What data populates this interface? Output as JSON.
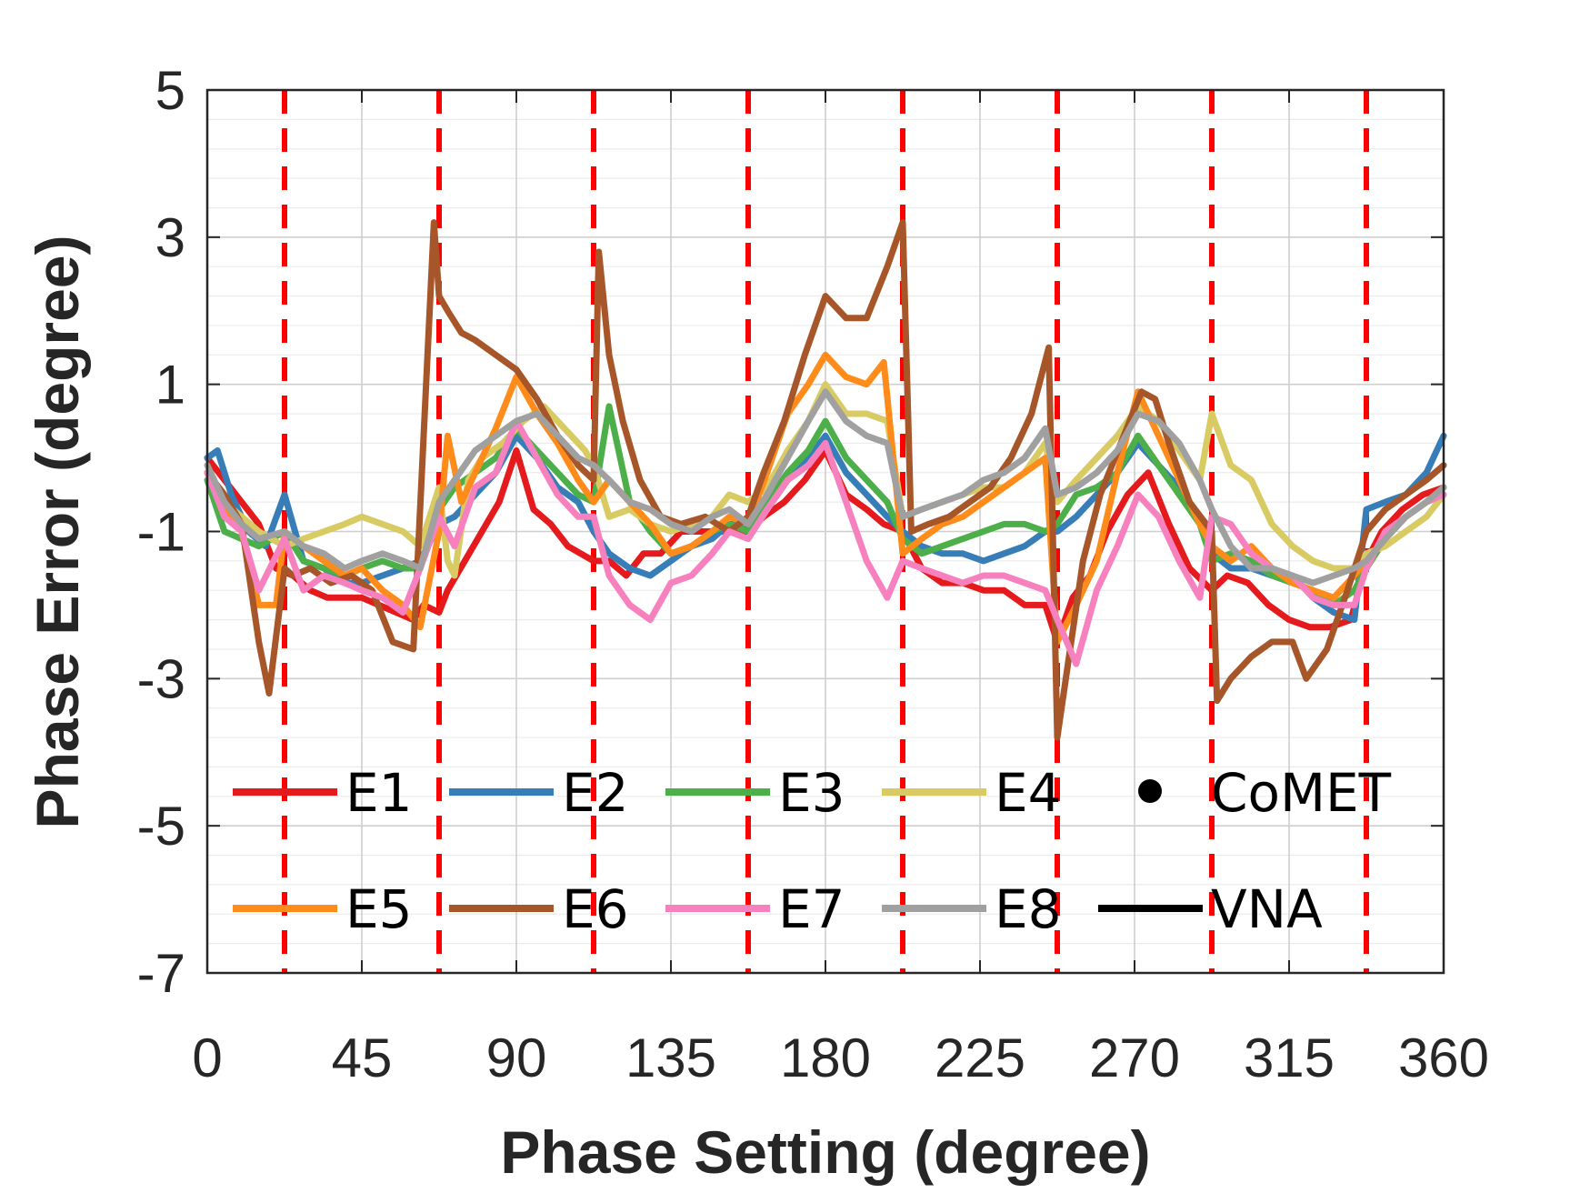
{
  "chart_data": {
    "type": "line",
    "title": "",
    "xlabel": "Phase Setting (degree)",
    "ylabel": "Phase Error (degree)",
    "xlim": [
      0,
      360
    ],
    "ylim": [
      -7,
      5
    ],
    "xticks": [
      0,
      45,
      90,
      135,
      180,
      225,
      270,
      315,
      360
    ],
    "yticks": [
      5,
      3,
      1,
      -1,
      -3,
      -5,
      -7
    ],
    "xtick_labels": [
      "0",
      "45",
      "90",
      "135",
      "180",
      "225",
      "270",
      "315",
      "360"
    ],
    "ytick_labels": [
      "5",
      "3",
      "1",
      "-1",
      "-3",
      "-5",
      "-7"
    ],
    "grid": true,
    "minor_grid_y": true,
    "vertical_markers": {
      "color": "#ff0000",
      "style": "dashed",
      "x": [
        22.5,
        67.5,
        112.5,
        157.5,
        202.5,
        247.5,
        292.5,
        337.5
      ]
    },
    "legend": {
      "placement": "bottom",
      "entries": [
        {
          "key": "E1",
          "label": "E1"
        },
        {
          "key": "E2",
          "label": "E2"
        },
        {
          "key": "E3",
          "label": "E3"
        },
        {
          "key": "E4",
          "label": "E4"
        },
        {
          "key": "CoMET",
          "label": "CoMET",
          "marker": "dot"
        },
        {
          "key": "E5",
          "label": "E5"
        },
        {
          "key": "E6",
          "label": "E6"
        },
        {
          "key": "E7",
          "label": "E7"
        },
        {
          "key": "E8",
          "label": "E8"
        },
        {
          "key": "VNA",
          "label": "VNA",
          "marker": "line"
        }
      ]
    },
    "series": [
      {
        "name": "E1",
        "color": "#e41a1c",
        "x": [
          0,
          5,
          10,
          15,
          20,
          25,
          30,
          35,
          40,
          45,
          50,
          55,
          60,
          63,
          67.5,
          70,
          75,
          80,
          85,
          90,
          95,
          100,
          105,
          112.5,
          117,
          122,
          127,
          132,
          138,
          145,
          150,
          157.5,
          162,
          168,
          174,
          180,
          186,
          192,
          197,
          202.5,
          208,
          214,
          220,
          226,
          232,
          238,
          244,
          247.5,
          252,
          257,
          262,
          268,
          274,
          280,
          286,
          292.5,
          297,
          303,
          309,
          315,
          321,
          327,
          333,
          337.5,
          342,
          348,
          354,
          360
        ],
        "y": [
          0,
          -0.3,
          -0.6,
          -0.9,
          -1.5,
          -1.6,
          -1.8,
          -1.9,
          -1.9,
          -1.9,
          -2.0,
          -2.1,
          -2.2,
          -2.0,
          -2.1,
          -1.8,
          -1.4,
          -1.0,
          -0.6,
          0.1,
          -0.7,
          -0.9,
          -1.2,
          -1.4,
          -1.4,
          -1.6,
          -1.3,
          -1.3,
          -1.0,
          -1.0,
          -1.0,
          -1.0,
          -0.8,
          -0.6,
          -0.3,
          0.1,
          -0.5,
          -0.7,
          -0.9,
          -1.0,
          -1.5,
          -1.7,
          -1.7,
          -1.8,
          -1.8,
          -2.0,
          -2.0,
          -2.5,
          -1.9,
          -1.6,
          -1.0,
          -0.5,
          -0.2,
          -0.9,
          -1.5,
          -1.8,
          -1.6,
          -1.7,
          -2.0,
          -2.2,
          -2.3,
          -2.3,
          -2.2,
          -1.4,
          -1.0,
          -0.7,
          -0.5,
          -0.4
        ]
      },
      {
        "name": "E2",
        "color": "#377eb8",
        "x": [
          0,
          3,
          7,
          12,
          17,
          22.5,
          28,
          34,
          40,
          45,
          51,
          57,
          62,
          67.5,
          72,
          78,
          84,
          90,
          96,
          102,
          108,
          112.5,
          117,
          123,
          129,
          135,
          141,
          147,
          152,
          157.5,
          163,
          169,
          175,
          180,
          186,
          192,
          198,
          202.5,
          208,
          214,
          220,
          226,
          232,
          238,
          244,
          247.5,
          253,
          259,
          265,
          271,
          277,
          283,
          289,
          292.5,
          298,
          304,
          310,
          316,
          322,
          328,
          334,
          337.5,
          343,
          349,
          355,
          360
        ],
        "y": [
          0,
          0.1,
          -0.5,
          -1.0,
          -1.2,
          -0.5,
          -1.4,
          -1.5,
          -1.7,
          -1.7,
          -1.6,
          -1.5,
          -1.4,
          -0.9,
          -0.8,
          -0.5,
          -0.2,
          0.3,
          0.0,
          -0.4,
          -0.6,
          -1.0,
          -1.3,
          -1.5,
          -1.6,
          -1.4,
          -1.2,
          -1.1,
          -0.9,
          -0.9,
          -0.7,
          -0.3,
          0.0,
          0.3,
          -0.2,
          -0.5,
          -0.8,
          -1.0,
          -1.2,
          -1.3,
          -1.3,
          -1.4,
          -1.3,
          -1.2,
          -1.0,
          -1.0,
          -0.8,
          -0.5,
          -0.2,
          0.2,
          -0.1,
          -0.4,
          -0.8,
          -1.3,
          -1.5,
          -1.5,
          -1.6,
          -1.6,
          -1.9,
          -2.1,
          -2.2,
          -0.7,
          -0.6,
          -0.5,
          -0.2,
          0.3
        ]
      },
      {
        "name": "E3",
        "color": "#4daf4a",
        "x": [
          0,
          5,
          10,
          15,
          22.5,
          28,
          34,
          40,
          45,
          51,
          57,
          62,
          67.5,
          72,
          78,
          84,
          90,
          96,
          102,
          108,
          112.5,
          117,
          123,
          129,
          135,
          141,
          147,
          152,
          157.5,
          163,
          169,
          175,
          180,
          186,
          192,
          198,
          202.5,
          208,
          214,
          220,
          226,
          232,
          238,
          244,
          247.5,
          253,
          259,
          265,
          271,
          277,
          283,
          289,
          292.5,
          298,
          304,
          310,
          316,
          322,
          328,
          334,
          337.5,
          343,
          349,
          355,
          360
        ],
        "y": [
          -0.3,
          -1.0,
          -1.1,
          -1.2,
          -1.0,
          -1.4,
          -1.5,
          -1.6,
          -1.5,
          -1.4,
          -1.5,
          -1.5,
          -0.7,
          -0.4,
          -0.2,
          0.0,
          0.4,
          0.1,
          -0.2,
          -0.5,
          -0.6,
          0.7,
          -0.6,
          -1.0,
          -1.3,
          -1.2,
          -1.0,
          -0.9,
          -1.0,
          -0.6,
          -0.2,
          0.1,
          0.5,
          0.0,
          -0.3,
          -0.6,
          -1.1,
          -1.3,
          -1.2,
          -1.1,
          -1.0,
          -0.9,
          -0.9,
          -1.0,
          -0.9,
          -0.5,
          -0.4,
          -0.2,
          0.3,
          -0.1,
          -0.5,
          -0.9,
          -1.4,
          -1.3,
          -1.4,
          -1.6,
          -1.7,
          -1.8,
          -2.0,
          -1.8,
          -1.5,
          -1.1,
          -0.8,
          -0.6,
          -0.5
        ]
      },
      {
        "name": "E4",
        "color": "#d8cb63",
        "x": [
          0,
          5,
          10,
          15,
          22.5,
          28,
          34,
          40,
          45,
          51,
          57,
          62,
          67.5,
          70,
          72,
          76,
          80,
          86,
          92,
          98,
          104,
          110,
          112.5,
          117,
          123,
          129,
          135,
          141,
          147,
          152,
          157.5,
          163,
          169,
          175,
          180,
          186,
          192,
          198,
          202.5,
          208,
          214,
          220,
          226,
          232,
          238,
          244,
          247.5,
          253,
          259,
          265,
          271,
          277,
          283,
          289,
          292.5,
          298,
          304,
          310,
          316,
          322,
          328,
          334,
          337.5,
          343,
          349,
          355,
          360
        ],
        "y": [
          -0.2,
          -0.6,
          -0.8,
          -1.0,
          -1.2,
          -1.1,
          -1.0,
          -0.9,
          -0.8,
          -0.9,
          -1.0,
          -1.2,
          -0.4,
          -1.4,
          -1.6,
          -0.3,
          0.0,
          0.2,
          0.5,
          0.7,
          0.4,
          0.1,
          -0.1,
          -0.8,
          -0.7,
          -0.9,
          -1.0,
          -0.9,
          -0.8,
          -0.5,
          -0.6,
          -0.4,
          0.1,
          0.5,
          1.0,
          0.6,
          0.6,
          0.5,
          -0.8,
          -0.7,
          -0.6,
          -0.5,
          -0.4,
          -0.4,
          -0.2,
          0.2,
          -0.6,
          -0.3,
          0.0,
          0.3,
          0.7,
          0.5,
          0.1,
          -0.3,
          0.6,
          -0.1,
          -0.3,
          -0.9,
          -1.2,
          -1.4,
          -1.5,
          -1.5,
          -1.3,
          -1.2,
          -1.0,
          -0.8,
          -0.5
        ]
      },
      {
        "name": "E5",
        "color": "#ff8c1a",
        "x": [
          0,
          5,
          10,
          15,
          20,
          22.5,
          28,
          34,
          40,
          45,
          51,
          57,
          62,
          67.5,
          70,
          74,
          78,
          84,
          90,
          96,
          102,
          108,
          112.5,
          117,
          123,
          129,
          135,
          141,
          147,
          152,
          157.5,
          163,
          169,
          175,
          180,
          186,
          192,
          197,
          202.5,
          208,
          214,
          220,
          226,
          232,
          238,
          244,
          247.5,
          253,
          259,
          265,
          271,
          277,
          283,
          289,
          292.5,
          298,
          304,
          310,
          316,
          322,
          328,
          334,
          337.5,
          343,
          349,
          355,
          360
        ],
        "y": [
          -0.2,
          -0.7,
          -1.0,
          -2.0,
          -2.0,
          -1.0,
          -1.2,
          -1.4,
          -1.6,
          -1.5,
          -1.8,
          -2.0,
          -2.3,
          -1.0,
          0.3,
          -0.6,
          -0.2,
          0.4,
          1.1,
          0.6,
          0.2,
          -0.3,
          -0.6,
          -0.3,
          -0.6,
          -0.9,
          -1.3,
          -1.2,
          -1.0,
          -0.8,
          -0.9,
          -0.2,
          0.6,
          1.0,
          1.4,
          1.1,
          1.0,
          1.3,
          -1.3,
          -1.1,
          -0.9,
          -0.8,
          -0.6,
          -0.4,
          -0.2,
          0.0,
          -2.5,
          -2.0,
          -1.4,
          -0.2,
          0.9,
          0.3,
          -0.3,
          -0.9,
          -1.2,
          -1.4,
          -1.2,
          -1.5,
          -1.7,
          -1.8,
          -1.9,
          -1.6,
          -1.4,
          -1.1,
          -0.8,
          -0.6,
          -0.4
        ]
      },
      {
        "name": "E6",
        "color": "#a65628",
        "x": [
          0,
          5,
          10,
          15,
          18,
          22.5,
          25,
          30,
          36,
          42,
          48,
          54,
          60,
          66,
          67.5,
          70,
          74,
          78,
          84,
          90,
          96,
          102,
          108,
          112.5,
          114,
          117,
          121,
          126,
          132,
          138,
          145,
          152,
          157.5,
          162,
          168,
          174,
          180,
          186,
          192,
          198,
          202.5,
          205,
          210,
          216,
          222,
          228,
          234,
          240,
          245,
          247.5,
          250,
          255,
          260,
          266,
          272,
          276,
          280,
          286,
          292.5,
          294,
          298,
          304,
          310,
          316,
          320,
          326,
          332,
          337.5,
          343,
          349,
          355,
          360
        ],
        "y": [
          -0.2,
          -0.5,
          -0.9,
          -2.5,
          -3.2,
          -1.5,
          -1.6,
          -1.5,
          -1.7,
          -1.6,
          -1.8,
          -2.5,
          -2.6,
          3.2,
          2.2,
          2.0,
          1.7,
          1.6,
          1.4,
          1.2,
          0.8,
          0.3,
          -0.1,
          -0.3,
          2.8,
          1.4,
          0.5,
          -0.3,
          -0.8,
          -0.9,
          -0.8,
          -1.0,
          -0.8,
          -0.2,
          0.5,
          1.4,
          2.2,
          1.9,
          1.9,
          2.6,
          3.2,
          -1.0,
          -0.9,
          -0.8,
          -0.6,
          -0.4,
          0.0,
          0.6,
          1.5,
          -3.8,
          -3.0,
          -1.4,
          -0.5,
          0.2,
          0.9,
          0.8,
          0.2,
          -0.6,
          -1.0,
          -3.3,
          -3.0,
          -2.7,
          -2.5,
          -2.5,
          -3.0,
          -2.6,
          -1.8,
          -1.0,
          -0.7,
          -0.5,
          -0.3,
          -0.1
        ]
      },
      {
        "name": "E7",
        "color": "#f781bf",
        "x": [
          0,
          5,
          10,
          15,
          22.5,
          28,
          34,
          40,
          45,
          51,
          57,
          62,
          67.5,
          72,
          78,
          84,
          90,
          96,
          102,
          108,
          112.5,
          117,
          123,
          129,
          135,
          141,
          147,
          152,
          157.5,
          163,
          169,
          175,
          180,
          186,
          192,
          198,
          202.5,
          208,
          214,
          220,
          226,
          232,
          238,
          244,
          247.5,
          253,
          259,
          265,
          271,
          277,
          283,
          289,
          292.5,
          298,
          304,
          310,
          316,
          322,
          328,
          334,
          337.5,
          343,
          349,
          355,
          360
        ],
        "y": [
          -0.2,
          -0.8,
          -1.0,
          -1.8,
          -1.1,
          -1.8,
          -1.6,
          -1.7,
          -1.8,
          -1.9,
          -2.1,
          -1.5,
          -0.8,
          -1.2,
          -0.4,
          -0.2,
          0.5,
          0.0,
          -0.5,
          -0.8,
          -0.8,
          -1.6,
          -2.0,
          -2.2,
          -1.7,
          -1.6,
          -1.3,
          -1.0,
          -1.1,
          -0.7,
          -0.3,
          -0.1,
          0.2,
          -0.6,
          -1.4,
          -1.9,
          -1.4,
          -1.5,
          -1.6,
          -1.7,
          -1.6,
          -1.6,
          -1.7,
          -1.8,
          -2.2,
          -2.8,
          -1.8,
          -1.2,
          -0.5,
          -0.8,
          -1.4,
          -1.9,
          -0.8,
          -0.9,
          -1.3,
          -1.5,
          -1.6,
          -1.9,
          -2.0,
          -2.0,
          -1.5,
          -1.0,
          -0.8,
          -0.6,
          -0.5
        ]
      },
      {
        "name": "E8",
        "color": "#a0a0a0",
        "x": [
          0,
          5,
          10,
          15,
          22.5,
          28,
          34,
          40,
          45,
          51,
          57,
          62,
          67.5,
          72,
          78,
          84,
          90,
          96,
          102,
          108,
          112.5,
          117,
          123,
          129,
          135,
          141,
          147,
          152,
          157.5,
          163,
          169,
          175,
          180,
          186,
          192,
          198,
          202.5,
          208,
          214,
          220,
          226,
          232,
          238,
          244,
          247.5,
          253,
          259,
          265,
          271,
          277,
          283,
          289,
          292.5,
          298,
          304,
          310,
          316,
          322,
          328,
          334,
          337.5,
          343,
          349,
          355,
          360
        ],
        "y": [
          -0.1,
          -0.6,
          -0.9,
          -1.1,
          -1.0,
          -1.2,
          -1.3,
          -1.5,
          -1.4,
          -1.3,
          -1.4,
          -1.5,
          -0.6,
          -0.3,
          0.1,
          0.3,
          0.5,
          0.6,
          0.3,
          0.0,
          -0.1,
          -0.3,
          -0.6,
          -0.7,
          -0.9,
          -1.0,
          -0.8,
          -0.7,
          -0.9,
          -0.5,
          0.0,
          0.5,
          0.9,
          0.5,
          0.3,
          0.2,
          -0.8,
          -0.7,
          -0.6,
          -0.5,
          -0.3,
          -0.2,
          0.0,
          0.4,
          -0.5,
          -0.4,
          -0.2,
          0.1,
          0.6,
          0.5,
          0.2,
          -0.3,
          -0.7,
          -1.2,
          -1.5,
          -1.5,
          -1.6,
          -1.7,
          -1.6,
          -1.5,
          -1.4,
          -1.1,
          -0.8,
          -0.6,
          -0.4
        ]
      }
    ]
  }
}
